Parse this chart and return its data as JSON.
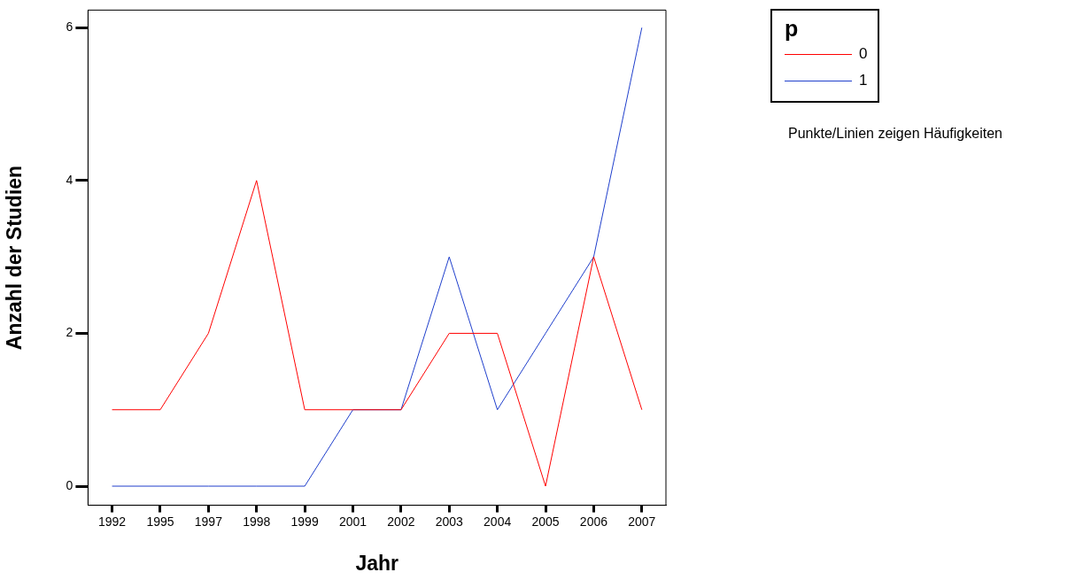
{
  "chart_data": {
    "type": "line",
    "xlabel": "Jahr",
    "ylabel": "Anzahl der Studien",
    "legend_title": "p",
    "legend": "top right",
    "grid": false,
    "marker": "none",
    "line_style": "solid",
    "categories": [
      "1992",
      "1995",
      "1997",
      "1998",
      "1999",
      "2001",
      "2002",
      "2003",
      "2004",
      "2005",
      "2006",
      "2007"
    ],
    "series": [
      {
        "name": "0",
        "color": "#ff0000",
        "values": [
          1,
          1,
          2,
          4,
          1,
          1,
          1,
          2,
          2,
          0,
          3,
          1
        ]
      },
      {
        "name": "1",
        "color": "#1f3fcc",
        "values": [
          0,
          0,
          0,
          0,
          0,
          1,
          1,
          3,
          1,
          2,
          3,
          6
        ]
      }
    ],
    "ylim": [
      -0.25,
      6.23
    ],
    "yticks": [
      0,
      2,
      4,
      6
    ],
    "annotations": [
      "Punkte/Linien zeigen Häufigkeiten"
    ]
  }
}
